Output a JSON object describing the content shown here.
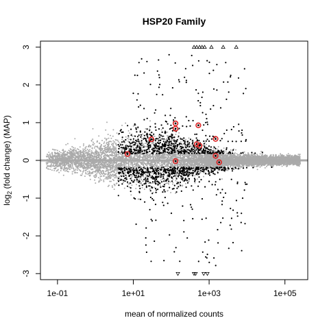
{
  "chart_data": {
    "type": "scatter",
    "title": "HSP20 Family",
    "xlabel": "mean of normalized counts",
    "ylabel_parts": {
      "pre": "log",
      "sub": "2",
      "post": " (fold change) (MAP)"
    },
    "x_scale": "log10",
    "xlim": [
      0.0355,
      400000
    ],
    "ylim": [
      -3.16,
      3.16
    ],
    "x_ticks": [
      {
        "value": 0.1,
        "label": "1e-01"
      },
      {
        "value": 10,
        "label": "1e+01"
      },
      {
        "value": 1000,
        "label": "1e+03"
      },
      {
        "value": 100000,
        "label": "1e+05"
      }
    ],
    "y_ticks": [
      {
        "value": 3,
        "label": "3"
      },
      {
        "value": 2,
        "label": "2"
      },
      {
        "value": 1,
        "label": "1"
      },
      {
        "value": 0,
        "label": "0"
      },
      {
        "value": -1,
        "label": "-1"
      },
      {
        "value": -2,
        "label": "-2"
      },
      {
        "value": -3,
        "label": "-3"
      }
    ],
    "hline": {
      "y": 0,
      "color": "#a9a9a9"
    },
    "colors": {
      "significant": "#000000",
      "nonsignificant": "#aaaaaa",
      "highlight": "#dd2222",
      "hline": "#a9a9a9"
    },
    "series": [
      {
        "kind": "highlighted-genes",
        "points": [
          {
            "x": 7,
            "y": 0.17
          },
          {
            "x": 30,
            "y": 0.56
          },
          {
            "x": 130,
            "y": 0.98
          },
          {
            "x": 130,
            "y": 0.84
          },
          {
            "x": 130,
            "y": -0.02
          },
          {
            "x": 520,
            "y": 0.93
          },
          {
            "x": 470,
            "y": 0.43
          },
          {
            "x": 560,
            "y": 0.39
          },
          {
            "x": 1480,
            "y": 0.57
          },
          {
            "x": 1480,
            "y": 0.12
          },
          {
            "x": 1840,
            "y": -0.05
          }
        ]
      },
      {
        "kind": "clipped-above",
        "points": [
          {
            "x": 400,
            "y": 3
          },
          {
            "x": 470,
            "y": 3
          },
          {
            "x": 560,
            "y": 3
          },
          {
            "x": 650,
            "y": 3
          },
          {
            "x": 760,
            "y": 3
          },
          {
            "x": 1150,
            "y": 3
          },
          {
            "x": 2350,
            "y": 3
          },
          {
            "x": 5200,
            "y": 3
          }
        ]
      },
      {
        "kind": "clipped-below",
        "points": [
          {
            "x": 150,
            "y": -3
          },
          {
            "x": 400,
            "y": -3
          },
          {
            "x": 440,
            "y": -3
          },
          {
            "x": 720,
            "y": -3
          },
          {
            "x": 900,
            "y": -3
          }
        ]
      }
    ]
  }
}
